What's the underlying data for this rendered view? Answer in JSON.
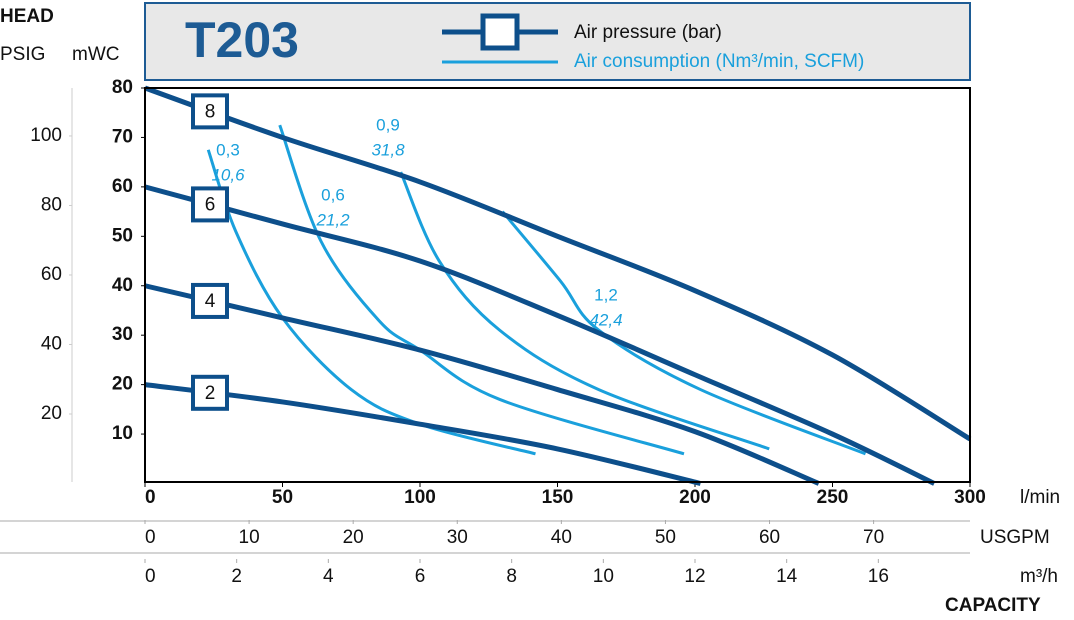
{
  "chart_data": {
    "type": "line",
    "title": "T203",
    "yaxis_title": "HEAD",
    "xaxis_title": "CAPACITY",
    "legend": [
      {
        "label": "Air pressure (bar)",
        "color": "#0d4f8b"
      },
      {
        "label": "Air consumption (Nm³/min, SCFM)",
        "color": "#1aa0dc"
      }
    ],
    "xlabel": "l/min",
    "xlim": [
      0,
      300
    ],
    "xticks": [
      0,
      50,
      100,
      150,
      200,
      250,
      300
    ],
    "secondary_x_axes": [
      {
        "label": "USGPM",
        "lim": [
          0,
          79.26
        ],
        "ticks": [
          0,
          10,
          20,
          30,
          40,
          50,
          60,
          70
        ]
      },
      {
        "label": "m³/h",
        "lim": [
          0,
          18
        ],
        "ticks": [
          0,
          2,
          4,
          6,
          8,
          10,
          12,
          14,
          16
        ]
      }
    ],
    "ylabel": "mWC",
    "ylim": [
      0,
      80
    ],
    "yticks": [
      10,
      20,
      30,
      40,
      50,
      60,
      70,
      80
    ],
    "y2label": "PSIG",
    "y2lim": [
      0,
      113.8
    ],
    "y2ticks": [
      20,
      40,
      60,
      80,
      100
    ],
    "pressure_curves": [
      {
        "label": "8",
        "x": [
          0,
          50,
          100,
          150,
          200,
          250,
          300
        ],
        "values": [
          80,
          70,
          61,
          50,
          39,
          26,
          9
        ]
      },
      {
        "label": "6",
        "x": [
          0,
          50,
          100,
          150,
          200,
          250,
          287
        ],
        "values": [
          60,
          52.5,
          45,
          34,
          22,
          10,
          0
        ]
      },
      {
        "label": "4",
        "x": [
          0,
          50,
          100,
          150,
          200,
          245
        ],
        "values": [
          40,
          33.5,
          27,
          19,
          10.5,
          0
        ]
      },
      {
        "label": "2",
        "x": [
          0,
          50,
          100,
          150,
          202
        ],
        "values": [
          20,
          16.5,
          12,
          7,
          0
        ]
      }
    ],
    "consumption_curves": [
      {
        "labels": [
          "0,3",
          "10,6"
        ],
        "x": [
          23,
          33,
          50,
          75,
          100,
          142
        ],
        "values": [
          67.5,
          51,
          33.5,
          19,
          12,
          6
        ]
      },
      {
        "labels": [
          "0,6",
          "21,2"
        ],
        "x": [
          49,
          64,
          85,
          100,
          129,
          196
        ],
        "values": [
          72.5,
          49,
          33,
          27,
          17,
          6
        ]
      },
      {
        "labels": [
          "0,9",
          "31,8"
        ],
        "x": [
          93,
          107,
          129,
          165,
          227
        ],
        "values": [
          63,
          45,
          31,
          19,
          7
        ]
      },
      {
        "labels": [
          "1,2",
          "42,4"
        ],
        "x": [
          130,
          151,
          165,
          202,
          262
        ],
        "values": [
          55,
          41,
          31,
          19,
          6
        ]
      }
    ]
  }
}
